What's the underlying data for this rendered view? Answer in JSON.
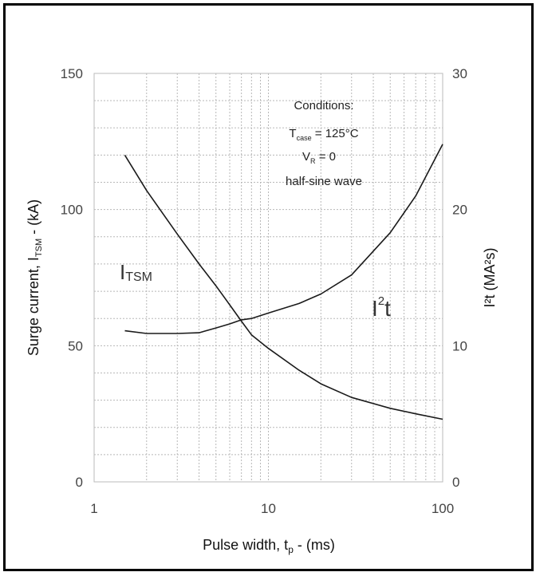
{
  "chart_data": {
    "type": "line",
    "x_scale": "log",
    "xlim": [
      1,
      100
    ],
    "ylim_left": [
      0,
      150
    ],
    "ylim_right": [
      0,
      30
    ],
    "grid": true,
    "xlabel": {
      "main": "Pulse width, t",
      "sub": "p",
      "tail": " - (ms)"
    },
    "ylabel_left": {
      "main": "Surge current, I",
      "sub": "TSM",
      "tail": " - (kA)"
    },
    "ylabel_right": {
      "main": "I²t (MA²s)"
    },
    "x_ticks": [
      {
        "value": 1,
        "label": "1"
      },
      {
        "value": 10,
        "label": "10"
      },
      {
        "value": 100,
        "label": "100"
      }
    ],
    "y_left_ticks": [
      {
        "value": 0,
        "label": "0"
      },
      {
        "value": 50,
        "label": "50"
      },
      {
        "value": 100,
        "label": "100"
      },
      {
        "value": 150,
        "label": "150"
      }
    ],
    "y_right_ticks": [
      {
        "value": 0,
        "label": "0"
      },
      {
        "value": 10,
        "label": "10"
      },
      {
        "value": 20,
        "label": "20"
      },
      {
        "value": 30,
        "label": "30"
      }
    ],
    "annotation": {
      "title": "Conditions:",
      "line1": {
        "main": "T",
        "sub": "case",
        "tail": " = 125°C"
      },
      "line2": {
        "main": "V",
        "sub": "R",
        "tail": " = 0"
      },
      "line3": "half-sine wave"
    },
    "series": [
      {
        "name": "ITSM",
        "label_main": "I",
        "label_sub": "TSM",
        "axis": "left",
        "x": [
          1.5,
          2,
          3,
          4,
          5,
          6,
          7,
          8,
          10,
          15,
          20,
          30,
          50,
          70,
          100
        ],
        "y": [
          120,
          107,
          91,
          80,
          72,
          65,
          59,
          54,
          49,
          41,
          36,
          31,
          27,
          25,
          23
        ]
      },
      {
        "name": "I2t",
        "label_main": "I",
        "label_sup": "2",
        "label_tail": "t",
        "axis": "right",
        "x": [
          1.5,
          2,
          3,
          4,
          5,
          6,
          7,
          8,
          10,
          15,
          20,
          30,
          50,
          70,
          100
        ],
        "y": [
          11.1,
          10.9,
          10.9,
          10.95,
          11.3,
          11.6,
          11.9,
          12.0,
          12.4,
          13.1,
          13.8,
          15.2,
          18.3,
          21.0,
          24.8
        ]
      }
    ]
  }
}
